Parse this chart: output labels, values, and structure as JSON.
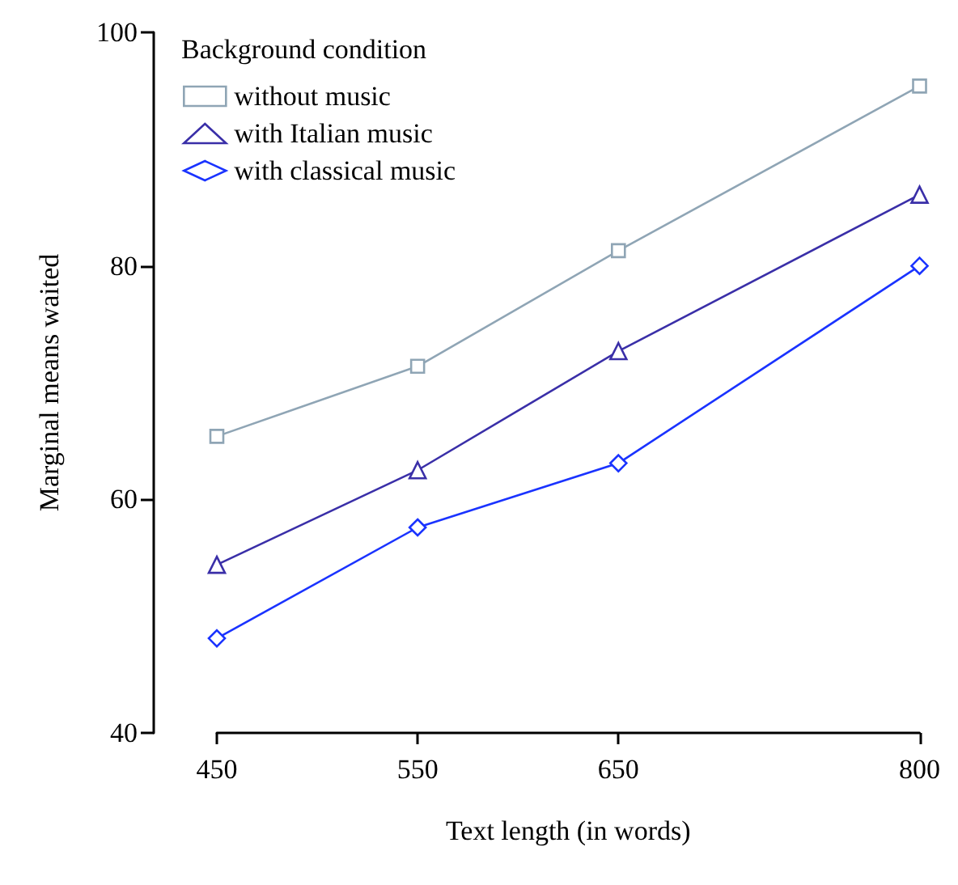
{
  "chart_data": {
    "type": "line",
    "xlabel": "Text length (in words)",
    "ylabel": "Marginal means waited",
    "legend_title": "Background condition",
    "legend": "top left",
    "grid": false,
    "x": [
      450,
      550,
      650,
      800
    ],
    "xlim": [
      450,
      800
    ],
    "xticks": [
      450,
      550,
      650,
      800
    ],
    "ylim": [
      40,
      100
    ],
    "yticks": [
      40,
      60,
      80,
      100
    ],
    "series": [
      {
        "name": "without music",
        "color": "#8fa5b5",
        "marker": "square",
        "values": [
          65.4,
          71.4,
          81.3,
          95.4
        ]
      },
      {
        "name": "with Italian music",
        "color": "#3a2fa8",
        "marker": "triangle",
        "values": [
          54.4,
          62.5,
          72.7,
          86.1
        ]
      },
      {
        "name": "with classical music",
        "color": "#1a33ff",
        "marker": "diamond",
        "values": [
          48.1,
          57.6,
          63.1,
          80.0
        ]
      }
    ]
  }
}
